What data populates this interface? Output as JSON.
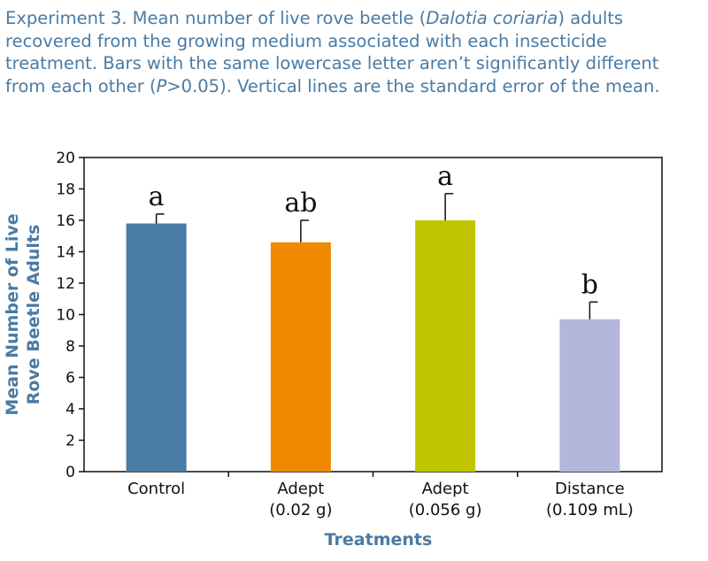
{
  "caption": {
    "prefix": "Experiment 3. Mean number of live rove beetle (",
    "species": "Dalotia coriaria",
    "middle": ") adults recovered from the growing medium associated with each insecticide treatment. Bars with the same lowercase letter aren’t significantly different from each other (",
    "p_symbol": "P",
    "suffix": ">0.05). Vertical lines are the standard error of the mean."
  },
  "chart_data": {
    "type": "bar",
    "title": "",
    "xlabel": "Treatments",
    "ylabel_lines": [
      "Mean Number of Live",
      "Rove Beetle Adults"
    ],
    "ylim": [
      0,
      20
    ],
    "yticks": [
      0,
      2,
      4,
      6,
      8,
      10,
      12,
      14,
      16,
      18,
      20
    ],
    "categories": [
      [
        "Control"
      ],
      [
        "Adept",
        "(0.02 g)"
      ],
      [
        "Adept",
        "(0.056 g)"
      ],
      [
        "Distance",
        "(0.109 mL)"
      ]
    ],
    "values": [
      15.8,
      14.6,
      16.0,
      9.7
    ],
    "errors": [
      0.6,
      1.4,
      1.7,
      1.1
    ],
    "letters": [
      "a",
      "ab",
      "a",
      "b"
    ],
    "colors": [
      "#4a7ba4",
      "#ef8a00",
      "#bfc600",
      "#b3b7dc"
    ]
  }
}
